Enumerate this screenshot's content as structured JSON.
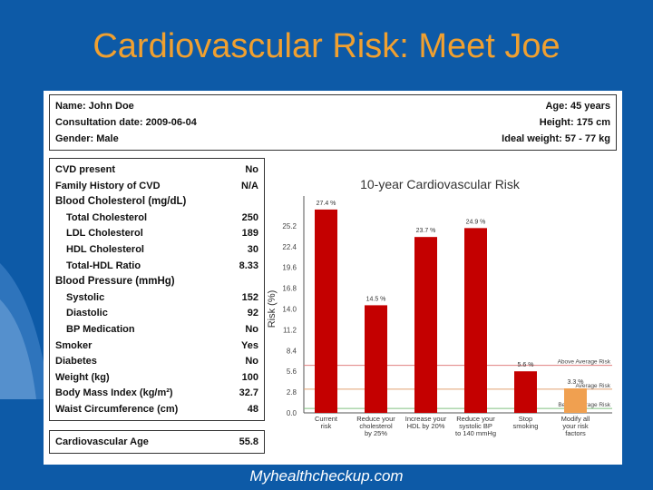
{
  "slide": {
    "title": "Cardiovascular Risk: Meet Joe",
    "footer": "Myhealthcheckup.com"
  },
  "patient": {
    "name_label": "Name: John Doe",
    "date_label": "Consultation date: 2009-06-04",
    "gender_label": "Gender: Male",
    "age_label": "Age: 45 years",
    "height_label": "Height: 175 cm",
    "ideal_weight_label": "Ideal weight: 57 - 77 kg"
  },
  "risk_factors": [
    {
      "label": "CVD present",
      "value": "No",
      "indent": false,
      "section": false
    },
    {
      "label": "Family History of CVD",
      "value": "N/A",
      "indent": false,
      "section": false
    },
    {
      "label": "Blood Cholesterol (mg/dL)",
      "value": "",
      "indent": false,
      "section": true
    },
    {
      "label": "Total Cholesterol",
      "value": "250",
      "indent": true,
      "section": false
    },
    {
      "label": "LDL Cholesterol",
      "value": "189",
      "indent": true,
      "section": false
    },
    {
      "label": "HDL Cholesterol",
      "value": "30",
      "indent": true,
      "section": false
    },
    {
      "label": "Total-HDL Ratio",
      "value": "8.33",
      "indent": true,
      "section": false
    },
    {
      "label": "Blood Pressure (mmHg)",
      "value": "",
      "indent": false,
      "section": true
    },
    {
      "label": "Systolic",
      "value": "152",
      "indent": true,
      "section": false
    },
    {
      "label": "Diastolic",
      "value": "92",
      "indent": true,
      "section": false
    },
    {
      "label": "BP Medication",
      "value": "No",
      "indent": true,
      "section": false
    },
    {
      "label": "Smoker",
      "value": "Yes",
      "indent": false,
      "section": false
    },
    {
      "label": "Diabetes",
      "value": "No",
      "indent": false,
      "section": false
    },
    {
      "label": "Weight (kg)",
      "value": "100",
      "indent": false,
      "section": false
    },
    {
      "label": "Body Mass Index (kg/m²)",
      "value": "32.7",
      "indent": false,
      "section": false
    },
    {
      "label": "Waist Circumference (cm)",
      "value": "48",
      "indent": false,
      "section": false
    }
  ],
  "cardio_age": {
    "label": "Cardiovascular Age",
    "value": "55.8"
  },
  "chart_data": {
    "type": "bar",
    "title": "10-year Cardiovascular Risk",
    "ylabel": "Risk (%)",
    "ylim": [
      0,
      28
    ],
    "yticks": [
      "0.0",
      "2.8",
      "5.6",
      "8.4",
      "11.2",
      "14.0",
      "16.8",
      "19.6",
      "22.4",
      "25.2"
    ],
    "ytick_values": [
      0,
      2.8,
      5.6,
      8.4,
      11.2,
      14.0,
      16.8,
      19.6,
      22.4,
      25.2
    ],
    "categories": [
      [
        "Current",
        "risk"
      ],
      [
        "Reduce your",
        "cholesterol",
        "by 25%"
      ],
      [
        "Increase your",
        "HDL by 20%"
      ],
      [
        "Reduce your",
        "systolic BP",
        "to 140 mmHg"
      ],
      [
        "Stop",
        "smoking"
      ],
      [
        "Modify all",
        "your risk",
        "factors"
      ]
    ],
    "values": [
      27.4,
      14.5,
      23.7,
      24.9,
      5.6,
      3.3
    ],
    "data_labels": [
      "27.4 %",
      "14.5 %",
      "23.7 %",
      "24.9 %",
      "5.6 %",
      "3.3 %"
    ],
    "bar_colors": [
      "#c40000",
      "#c40000",
      "#c40000",
      "#c40000",
      "#c40000",
      "#f0a050"
    ],
    "reference_lines": [
      {
        "label": "Above Average Risk",
        "value": 6.4,
        "color": "#e08080"
      },
      {
        "label": "Average Risk",
        "value": 3.2,
        "color": "#e0a070"
      },
      {
        "label": "Below Average Risk",
        "value": 0.6,
        "color": "#80c080"
      }
    ]
  }
}
